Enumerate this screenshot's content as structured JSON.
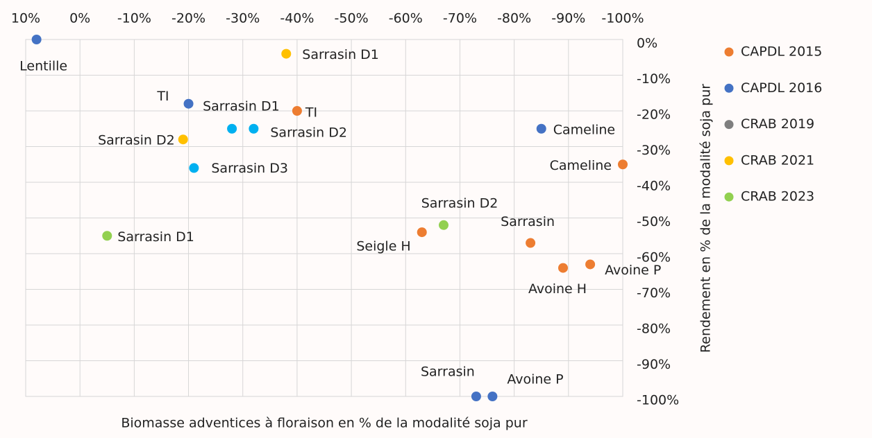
{
  "chart_data": {
    "type": "scatter",
    "xlabel": "Biomasse adventices à floraison en % de la modalité soja pur",
    "ylabel": "Rendement en % de la modalité soja pur",
    "xlim": [
      10,
      -100
    ],
    "xticks": [
      {
        "value": 10,
        "label": "10%"
      },
      {
        "value": 0,
        "label": "0%"
      },
      {
        "value": -10,
        "label": "-10%"
      },
      {
        "value": -20,
        "label": "-20%"
      },
      {
        "value": -30,
        "label": "-30%"
      },
      {
        "value": -40,
        "label": "-40%"
      },
      {
        "value": -50,
        "label": "-50%"
      },
      {
        "value": -60,
        "label": "-60%"
      },
      {
        "value": -70,
        "label": "-70%"
      },
      {
        "value": -80,
        "label": "-80%"
      },
      {
        "value": -90,
        "label": "-90%"
      },
      {
        "value": -100,
        "label": "-100%"
      }
    ],
    "ylim": [
      -100,
      0
    ],
    "yticks": [
      {
        "value": 0,
        "label": "0%"
      },
      {
        "value": -10,
        "label": "-10%"
      },
      {
        "value": -20,
        "label": "-20%"
      },
      {
        "value": -30,
        "label": "-30%"
      },
      {
        "value": -40,
        "label": "-40%"
      },
      {
        "value": -50,
        "label": "-50%"
      },
      {
        "value": -60,
        "label": "-60%"
      },
      {
        "value": -70,
        "label": "-70%"
      },
      {
        "value": -80,
        "label": "-80%"
      },
      {
        "value": -90,
        "label": "-90%"
      },
      {
        "value": -100,
        "label": "-100%"
      }
    ],
    "grid": true,
    "legend": "right",
    "series": [
      {
        "name": "CAPDL 2015",
        "color": "#ed7d31",
        "x": [
          -40,
          -100,
          -63,
          -83,
          -89,
          -94
        ],
        "y": [
          -20,
          -35,
          -54,
          -57,
          -64,
          -63
        ],
        "labels": [
          "TI",
          "Cameline",
          "Seigle H",
          "Sarrasin",
          "Avoine H",
          "Avoine P"
        ]
      },
      {
        "name": "CAPDL 2016",
        "color": "#4472c4",
        "x": [
          8,
          -20,
          -85,
          -73,
          -76
        ],
        "y": [
          0,
          -18,
          -25,
          -100,
          -100
        ],
        "labels": [
          "Lentille",
          "TI",
          "Cameline",
          "Sarrasin",
          "Avoine P"
        ]
      },
      {
        "name": "CRAB 2019",
        "color": "#7f7f7f",
        "marker_color": "#00b0f0",
        "x": [
          -28,
          -32,
          -21
        ],
        "y": [
          -25,
          -25,
          -36
        ],
        "labels": [
          "Sarrasin D1",
          "Sarrasin D2",
          "Sarrasin D3"
        ]
      },
      {
        "name": "CRAB 2021",
        "color": "#ffc000",
        "x": [
          -38,
          -19
        ],
        "y": [
          -4,
          -28
        ],
        "labels": [
          "Sarrasin D1",
          "Sarrasin D2"
        ]
      },
      {
        "name": "CRAB 2023",
        "color": "#92d050",
        "x": [
          -5,
          -67
        ],
        "y": [
          -55,
          -52
        ],
        "labels": [
          "Sarrasin D1",
          "Sarrasin D2"
        ]
      }
    ]
  }
}
